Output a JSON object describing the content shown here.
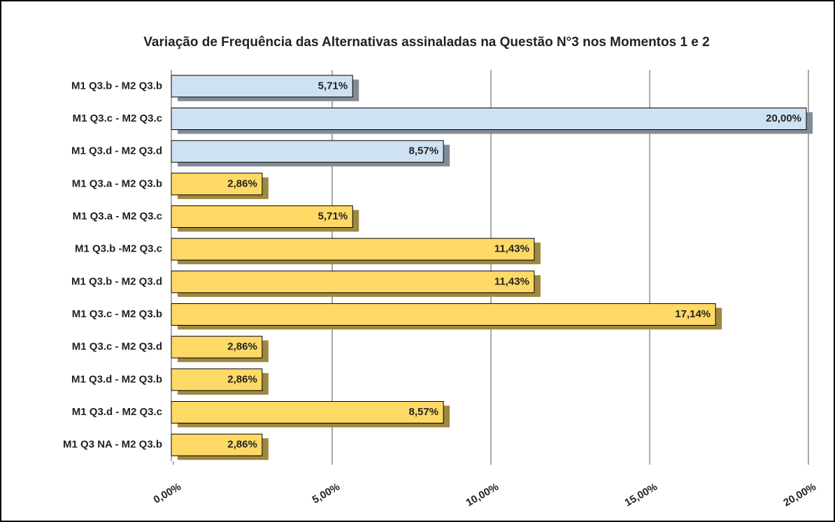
{
  "chart_data": {
    "type": "bar",
    "orientation": "horizontal",
    "title": "Variação de Frequência das Alternativas assinaladas na Questão N°3 nos Momentos 1 e 2",
    "categories": [
      "M1 Q3.b - M2 Q3.b",
      "M1 Q3.c - M2 Q3.c",
      "M1 Q3.d - M2 Q3.d",
      "M1 Q3.a - M2 Q3.b",
      "M1 Q3.a - M2 Q3.c",
      "M1 Q3.b -M2 Q3.c",
      "M1 Q3.b - M2 Q3.d",
      "M1 Q3.c - M2 Q3.b",
      "M1 Q3.c - M2 Q3.d",
      "M1 Q3.d - M2 Q3.b",
      "M1 Q3.d - M2 Q3.c",
      "M1 Q3 NA - M2 Q3.b"
    ],
    "values": [
      5.71,
      20,
      8.57,
      2.86,
      5.71,
      11.43,
      11.43,
      17.14,
      2.86,
      2.86,
      8.57,
      2.86
    ],
    "value_labels": [
      "5,71%",
      "20,00%",
      "8,57%",
      "2,86%",
      "5,71%",
      "11,43%",
      "11,43%",
      "17,14%",
      "2,86%",
      "2,86%",
      "8,57%",
      "2,86%"
    ],
    "colors": [
      "#cfe2f3",
      "#cfe2f3",
      "#cfe2f3",
      "#ffd966",
      "#ffd966",
      "#ffd966",
      "#ffd966",
      "#ffd966",
      "#ffd966",
      "#ffd966",
      "#ffd966",
      "#ffd966"
    ],
    "xlim": [
      0,
      20
    ],
    "xticks": [
      {
        "value": 0,
        "label": "0,00%"
      },
      {
        "value": 5,
        "label": "5,00%"
      },
      {
        "value": 10,
        "label": "10,00%"
      },
      {
        "value": 15,
        "label": "15,00%"
      },
      {
        "value": 20,
        "label": "20,00%"
      }
    ],
    "grid": true
  }
}
